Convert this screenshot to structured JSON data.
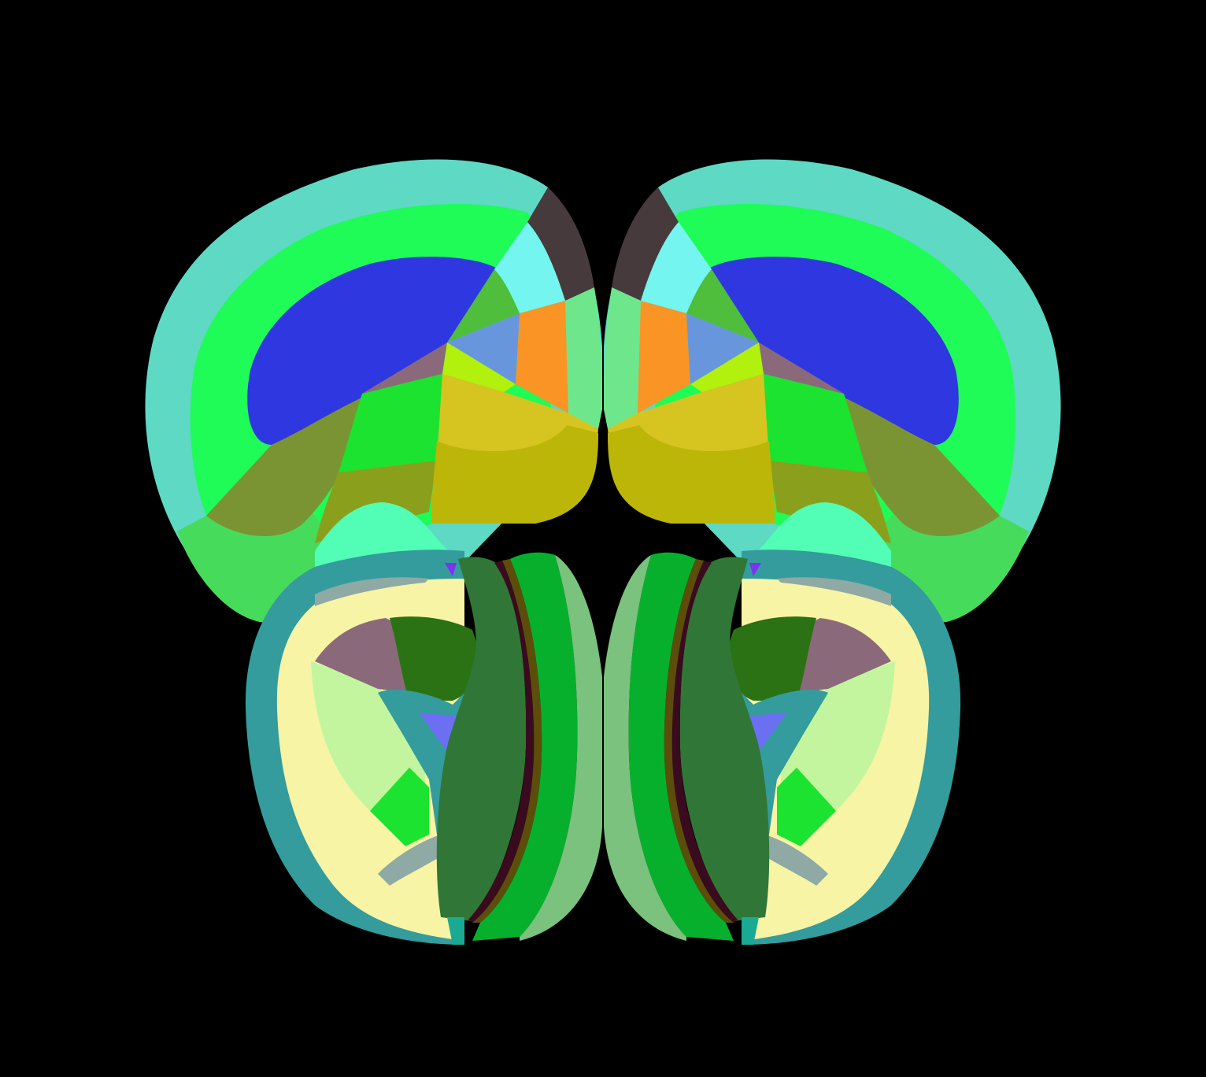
{
  "background": "#000000",
  "palette": {
    "cortex_outer": "#5dd9c4",
    "cortex_mid": "#1ffb57",
    "cortex_deep_blue": "#2e37e0",
    "olive": "#7b9433",
    "olive_light": "#8aa01d",
    "green_lower": "#47db5c",
    "dark_brown": "#463a3c",
    "cyan_light": "#75f5ef",
    "green_mid": "#4ebe3c",
    "orange": "#f99425",
    "periwinkle": "#6896dc",
    "mauve": "#8a6a7a",
    "lime": "#b2f00e",
    "green_bright": "#1be32f",
    "mustard": "#d6c421",
    "mustard_dark": "#bcb609",
    "pale_green": "#6ee68c",
    "mint": "#52fdb5",
    "teal": "#349c9c",
    "cream": "#f7f4a5",
    "pale_lime": "#c3f59f",
    "gray_green": "#8fa9a5",
    "forest": "#2b7214",
    "blue_violet": "#6b70f2",
    "dark_green": "#307737",
    "green_strip": "#06b02c",
    "sage": "#7ac27e",
    "brown_thin": "#5c4e0a",
    "maroon_thin": "#3a0a1e",
    "teal_small": "#1aaa94",
    "purple_small": "#7a34ee"
  }
}
